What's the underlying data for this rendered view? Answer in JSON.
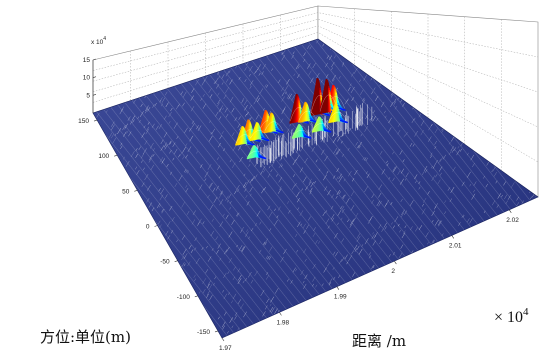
{
  "chart_data": {
    "type": "surface3d",
    "title": "",
    "xlabel": "距离 /m",
    "ylabel": "方位:单位(m)",
    "zlabel": "",
    "x_multiplier": "× 10",
    "x_multiplier_exp": "4",
    "z_multiplier": "x 10",
    "z_multiplier_exp": "4",
    "x_ticks": [
      "1.97",
      "1.98",
      "1.99",
      "2",
      "2.01",
      "2.02"
    ],
    "y_ticks": [
      "150",
      "100",
      "50",
      "0",
      "-50",
      "-100",
      "-150"
    ],
    "z_ticks": [
      "15",
      "10",
      "5"
    ],
    "xlim": [
      1.97,
      2.025
    ],
    "ylim": [
      -160,
      160
    ],
    "zlim": [
      0,
      15
    ],
    "colormap": "jet",
    "floor_color": "#2b3a85",
    "grid": true,
    "peaks": [
      {
        "x": 1.994,
        "y": 58,
        "z": 4.6
      },
      {
        "x": 1.9955,
        "y": 60,
        "z": 5.4
      },
      {
        "x": 1.997,
        "y": 57,
        "z": 4.4
      },
      {
        "x": 1.9995,
        "y": 62,
        "z": 5.8
      },
      {
        "x": 2.0005,
        "y": 60,
        "z": 4.9
      },
      {
        "x": 2.006,
        "y": 60,
        "z": 7.5
      },
      {
        "x": 2.0075,
        "y": 57,
        "z": 5.0
      },
      {
        "x": 2.0105,
        "y": 60,
        "z": 9.8
      },
      {
        "x": 2.0122,
        "y": 58,
        "z": 9.0
      },
      {
        "x": 2.0138,
        "y": 59,
        "z": 6.4
      },
      {
        "x": 1.994,
        "y": 36,
        "z": 3.0
      },
      {
        "x": 2.004,
        "y": 40,
        "z": 3.2
      },
      {
        "x": 2.008,
        "y": 38,
        "z": 3.6
      },
      {
        "x": 2.012,
        "y": 42,
        "z": 4.5
      }
    ]
  }
}
